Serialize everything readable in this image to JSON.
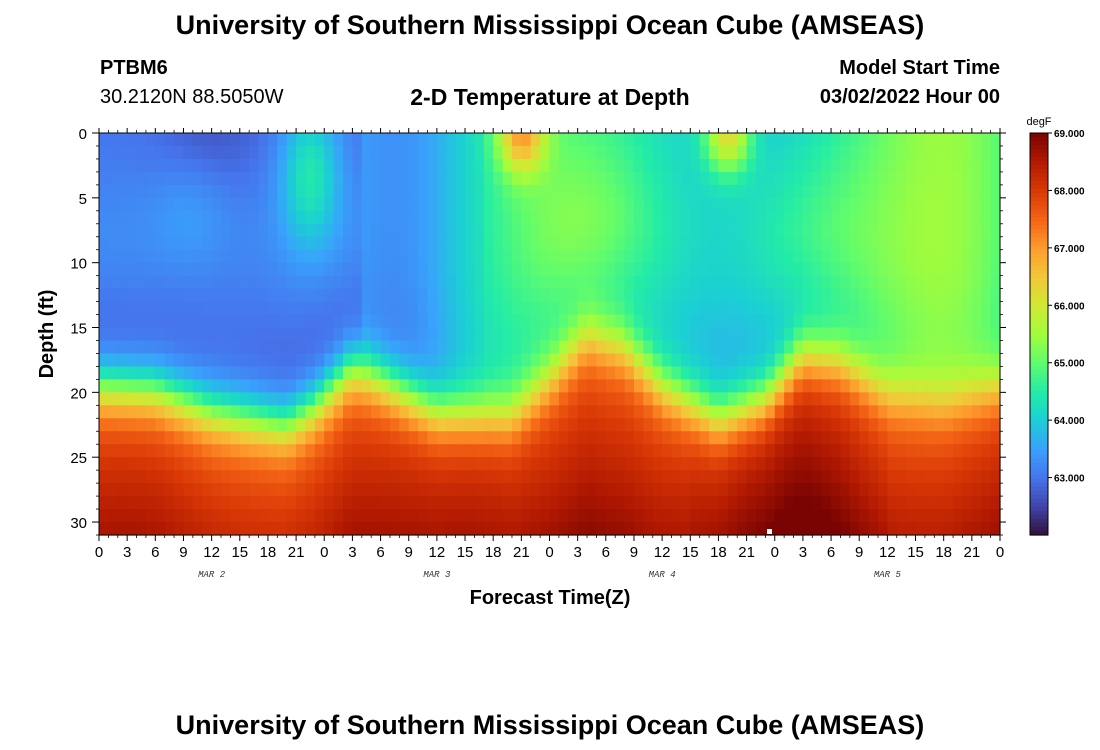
{
  "header": {
    "title": "University of Southern Mississippi Ocean Cube (AMSEAS)",
    "station_id": "PTBM6",
    "coordinates": "30.2120N  88.5050W",
    "chart_title": "2-D Temperature at Depth",
    "model_start_label": "Model Start Time",
    "model_start_value": "03/02/2022 Hour 00"
  },
  "footer": {
    "title": "University of Southern Mississippi Ocean Cube (AMSEAS)"
  },
  "chart_data": {
    "type": "heatmap",
    "title": "2-D Temperature at Depth",
    "xlabel": "Forecast Time(Z)",
    "ylabel": "Depth (ft)",
    "x_range_hours": [
      0,
      96
    ],
    "y_range_ft": [
      0,
      31
    ],
    "x_tick_labels": [
      "0",
      "3",
      "6",
      "9",
      "12",
      "15",
      "18",
      "21",
      "0",
      "3",
      "6",
      "9",
      "12",
      "15",
      "18",
      "21",
      "0",
      "3",
      "6",
      "9",
      "12",
      "15",
      "18",
      "21",
      "0",
      "3",
      "6",
      "9",
      "12",
      "15",
      "18",
      "21",
      "0"
    ],
    "y_ticks": [
      0,
      5,
      10,
      15,
      20,
      25,
      30
    ],
    "day_labels": [
      {
        "label": "MAR 2",
        "hour": 12
      },
      {
        "label": "MAR 3",
        "hour": 36
      },
      {
        "label": "MAR 4",
        "hour": 60
      },
      {
        "label": "MAR 5",
        "hour": 84
      }
    ],
    "colorbar": {
      "unit": "degF",
      "min": 62.0,
      "max": 69.0,
      "tick_labels": [
        "69.000",
        "68.000",
        "67.000",
        "66.000",
        "65.000",
        "64.000",
        "63.000"
      ],
      "tick_values": [
        69,
        68,
        67,
        66,
        65,
        64,
        63
      ]
    },
    "thermocline_depth_ft": [
      {
        "hour": 0,
        "depth": 19.5
      },
      {
        "hour": 6,
        "depth": 19.8
      },
      {
        "hour": 12,
        "depth": 21.5
      },
      {
        "hour": 20,
        "depth": 22.5
      },
      {
        "hour": 23,
        "depth": 21.0
      },
      {
        "hour": 27,
        "depth": 18.0
      },
      {
        "hour": 30,
        "depth": 19.0
      },
      {
        "hour": 36,
        "depth": 21.5
      },
      {
        "hour": 44,
        "depth": 21.8
      },
      {
        "hour": 48,
        "depth": 19.0
      },
      {
        "hour": 52,
        "depth": 15.5
      },
      {
        "hour": 56,
        "depth": 16.5
      },
      {
        "hour": 60,
        "depth": 19.5
      },
      {
        "hour": 66,
        "depth": 22.0
      },
      {
        "hour": 71,
        "depth": 20.5
      },
      {
        "hour": 75,
        "depth": 17.0
      },
      {
        "hour": 79,
        "depth": 17.5
      },
      {
        "hour": 84,
        "depth": 20.0
      },
      {
        "hour": 90,
        "depth": 20.8
      },
      {
        "hour": 96,
        "depth": 19.5
      }
    ],
    "surface_warm_events_hours": [
      45,
      67
    ]
  },
  "colors": {
    "cmap": [
      "#30123b",
      "#4145ab",
      "#4675ed",
      "#39a2fc",
      "#1bcfd4",
      "#24eca6",
      "#61fc6c",
      "#a4fc3b",
      "#d1e834",
      "#f3c63a",
      "#fe9b2d",
      "#f36315",
      "#d93806",
      "#b11901",
      "#7a0402"
    ]
  }
}
